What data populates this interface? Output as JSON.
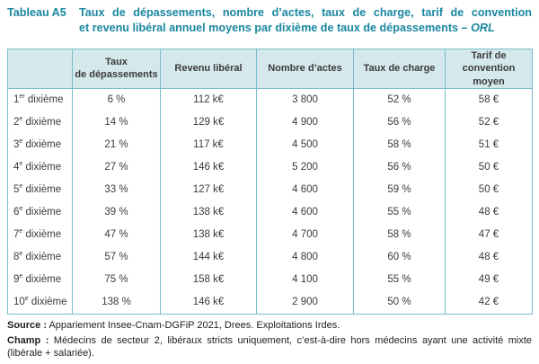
{
  "title": {
    "label": "Tableau A5",
    "line1": "Taux de dépassements, nombre d’actes, taux de charge, tarif de convention",
    "line2": "et revenu libéral annuel moyens par dixième de taux de dépassements – ",
    "line2_italic": "ORL"
  },
  "chart_data": {
    "type": "table",
    "title": "Taux de dépassements, nombre d’actes, taux de charge, tarif de convention et revenu libéral annuel moyens par dixième de taux de dépassements – ORL",
    "columns": [
      "",
      "Taux\nde dépassements",
      "Revenu libéral",
      "Nombre d’actes",
      "Taux de charge",
      "Tarif de convention\nmoyen"
    ],
    "rows_numeric": {
      "taux_depassements_pct": [
        6,
        14,
        21,
        27,
        33,
        39,
        47,
        57,
        75,
        138
      ],
      "revenu_liberal_keur": [
        112,
        129,
        117,
        146,
        127,
        138,
        138,
        144,
        158,
        146
      ],
      "nombre_actes": [
        3800,
        4900,
        4500,
        5200,
        4600,
        4600,
        4700,
        4800,
        4100,
        2900
      ],
      "taux_charge_pct": [
        52,
        56,
        58,
        56,
        59,
        55,
        58,
        60,
        55,
        50
      ],
      "tarif_convention_eur": [
        58,
        52,
        51,
        50,
        50,
        48,
        47,
        48,
        49,
        42
      ]
    }
  },
  "table": {
    "headers": [
      "",
      "Taux\nde dépassements",
      "Revenu libéral",
      "Nombre d’actes",
      "Taux de charge",
      "Tarif de convention\nmoyen"
    ],
    "rows": [
      {
        "label_num": "1",
        "label_sup": "er",
        "label_rest": "dixième",
        "cells": [
          "6 %",
          "112 k€",
          "3 800",
          "52 %",
          "58 €"
        ]
      },
      {
        "label_num": "2",
        "label_sup": "e",
        "label_rest": "dixième",
        "cells": [
          "14 %",
          "129 k€",
          "4 900",
          "56 %",
          "52 €"
        ]
      },
      {
        "label_num": "3",
        "label_sup": "e",
        "label_rest": "dixième",
        "cells": [
          "21 %",
          "117 k€",
          "4 500",
          "58 %",
          "51 €"
        ]
      },
      {
        "label_num": "4",
        "label_sup": "e",
        "label_rest": "dixième",
        "cells": [
          "27 %",
          "146 k€",
          "5 200",
          "56 %",
          "50 €"
        ]
      },
      {
        "label_num": "5",
        "label_sup": "e",
        "label_rest": "dixième",
        "cells": [
          "33 %",
          "127 k€",
          "4 600",
          "59 %",
          "50 €"
        ]
      },
      {
        "label_num": "6",
        "label_sup": "e",
        "label_rest": "dixième",
        "cells": [
          "39 %",
          "138 k€",
          "4 600",
          "55 %",
          "48 €"
        ]
      },
      {
        "label_num": "7",
        "label_sup": "e",
        "label_rest": "dixième",
        "cells": [
          "47 %",
          "138 k€",
          "4 700",
          "58 %",
          "47 €"
        ]
      },
      {
        "label_num": "8",
        "label_sup": "e",
        "label_rest": "dixième",
        "cells": [
          "57 %",
          "144 k€",
          "4 800",
          "60 %",
          "48 €"
        ]
      },
      {
        "label_num": "9",
        "label_sup": "e",
        "label_rest": "dixième",
        "cells": [
          "75 %",
          "158 k€",
          "4 100",
          "55 %",
          "49 €"
        ]
      },
      {
        "label_num": "10",
        "label_sup": "e",
        "label_rest": "dixième",
        "cells": [
          "138 %",
          "146 k€",
          "2 900",
          "50 %",
          "42 €"
        ]
      }
    ]
  },
  "footer": {
    "source_label": "Source :",
    "source_text": "Appariement Insee-Cnam-DGFiP 2021, Drees. Exploitations Irdes.",
    "champ_label": "Champ :",
    "champ_text": "Médecins de secteur 2, libéraux stricts uniquement, c’est-à-dire hors médecins ayant une activité mixte (libérale + salariée)."
  },
  "colors": {
    "accent_teal": "#1a87a0",
    "header_background": "#d5e9ec",
    "table_border": "#79bdc8",
    "body_text": "#3b3b3b"
  }
}
